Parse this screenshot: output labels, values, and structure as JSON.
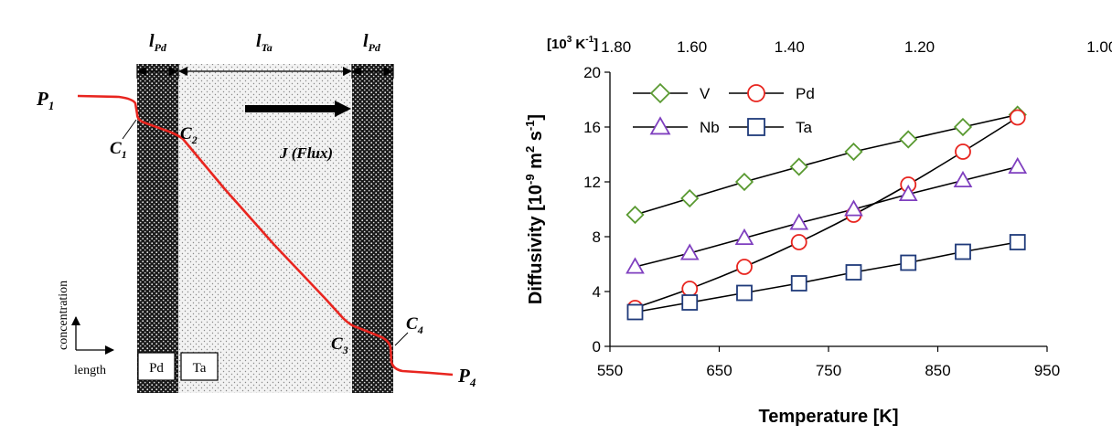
{
  "left_panel": {
    "thickness_labels": {
      "pd_left": "l",
      "pd_left_sub": "Pd",
      "ta": "l",
      "ta_sub": "Ta",
      "pd_right": "l",
      "pd_right_sub": "Pd"
    },
    "pressure_labels": {
      "p1": "P",
      "p1_sub": "1",
      "p4": "P",
      "p4_sub": "4"
    },
    "concentration_labels": {
      "c1": "C",
      "c1_sub": "1",
      "c2": "C",
      "c2_sub": "2",
      "c3": "C",
      "c3_sub": "3",
      "c4": "C",
      "c4_sub": "4"
    },
    "flux_label": "J (Flux)",
    "axis_labels": {
      "y": "concentration",
      "x": "length"
    },
    "legend_boxes": [
      "Pd",
      "Ta"
    ],
    "colors": {
      "profile": "#e8251f",
      "arrow": "#000000"
    }
  },
  "chart_data": {
    "type": "scatter",
    "title": "",
    "xlabel": "Temperature [K]",
    "ylabel_main": "Diffusivity [10",
    "ylabel_exp1": "-9",
    "ylabel_mid": " m",
    "ylabel_exp2": "2",
    "ylabel_mid2": " s",
    "ylabel_exp3": "-1",
    "ylabel_end": "]",
    "xlim": [
      550,
      950
    ],
    "ylim": [
      0,
      20
    ],
    "x_ticks": [
      "550",
      "650",
      "750",
      "850",
      "950"
    ],
    "y_ticks": [
      "0",
      "4",
      "8",
      "12",
      "16",
      "20"
    ],
    "top_axis_label": "[10",
    "top_axis_label_exp": "3",
    "top_axis_label_end": " K",
    "top_axis_label_exp2": "-1",
    "top_axis_label_close": "]",
    "top_ticks": [
      "1.80",
      "1.60",
      "1.40",
      "1.20",
      "1.00"
    ],
    "top_tick_values": [
      1.8,
      1.6,
      1.4,
      1.2,
      1.0
    ],
    "grid": false,
    "legend_position": "top-left",
    "series": [
      {
        "name": "V",
        "marker": "diamond",
        "color": "#5a9a32",
        "x": [
          573,
          623,
          673,
          723,
          773,
          823,
          873,
          923
        ],
        "y": [
          9.6,
          10.8,
          12.0,
          13.1,
          14.2,
          15.1,
          16.0,
          16.9
        ]
      },
      {
        "name": "Pd",
        "marker": "circle",
        "color": "#e8251f",
        "x": [
          573,
          623,
          673,
          723,
          773,
          823,
          873,
          923
        ],
        "y": [
          2.8,
          4.2,
          5.8,
          7.6,
          9.6,
          11.8,
          14.2,
          16.7
        ]
      },
      {
        "name": "Nb",
        "marker": "triangle",
        "color": "#7f3fbf",
        "x": [
          573,
          623,
          673,
          723,
          773,
          823,
          873,
          923
        ],
        "y": [
          5.8,
          6.8,
          7.9,
          9.0,
          10.0,
          11.1,
          12.1,
          13.1
        ]
      },
      {
        "name": "Ta",
        "marker": "square",
        "color": "#1f3a7a",
        "x": [
          573,
          623,
          673,
          723,
          773,
          823,
          873,
          923
        ],
        "y": [
          2.5,
          3.2,
          3.9,
          4.6,
          5.4,
          6.1,
          6.9,
          7.6
        ]
      }
    ]
  }
}
